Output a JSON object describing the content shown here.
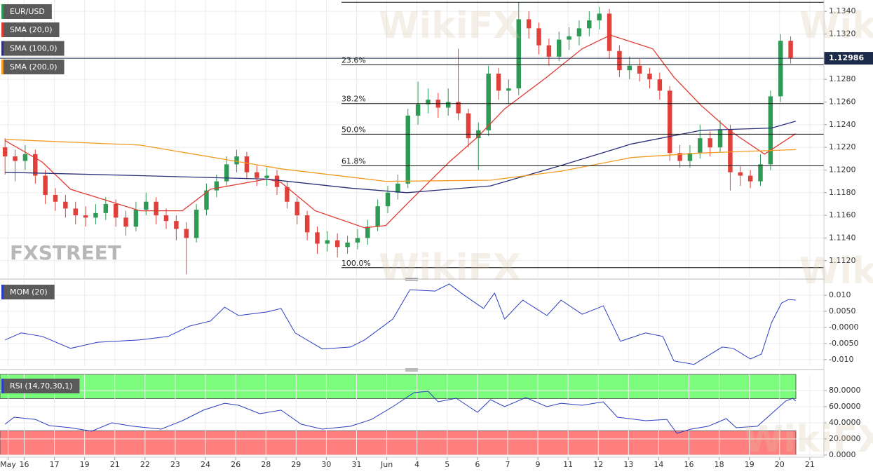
{
  "chart_data": [
    {
      "type": "candlestick",
      "name": "EUR/USD",
      "up_color": "#2e9a55",
      "down_color": "#e0403a",
      "xlim": [
        -0.5,
        81.3
      ],
      "open": [
        1.122,
        1.1212,
        1.1208,
        1.1214,
        1.1195,
        1.1178,
        1.1172,
        1.1166,
        1.116,
        1.1158,
        1.1162,
        1.117,
        1.1158,
        1.115,
        1.1165,
        1.1172,
        1.116,
        1.1155,
        1.1148,
        1.114,
        1.1165,
        1.1182,
        1.119,
        1.1205,
        1.1212,
        1.1198,
        1.1193,
        1.1195,
        1.1185,
        1.1172,
        1.116,
        1.1145,
        1.1135,
        1.1138,
        1.1132,
        1.1136,
        1.114,
        1.115,
        1.1168,
        1.118,
        1.1188,
        1.1248,
        1.1258,
        1.1262,
        1.1255,
        1.126,
        1.125,
        1.1228,
        1.1235,
        1.1285,
        1.127,
        1.1272,
        1.1333,
        1.1325,
        1.131,
        1.13,
        1.1315,
        1.1318,
        1.1325,
        1.1332,
        1.1338,
        1.1305,
        1.1288,
        1.1292,
        1.1285,
        1.128,
        1.127,
        1.1215,
        1.1208,
        1.1215,
        1.1228,
        1.122,
        1.1236,
        1.1198,
        1.1195,
        1.119,
        1.1205,
        1.1265,
        1.1314
      ],
      "high": [
        1.1228,
        1.1218,
        1.1222,
        1.1218,
        1.12,
        1.1184,
        1.1178,
        1.1172,
        1.1168,
        1.117,
        1.1176,
        1.1174,
        1.1164,
        1.1172,
        1.118,
        1.1176,
        1.1166,
        1.116,
        1.1154,
        1.117,
        1.1188,
        1.1196,
        1.1212,
        1.1218,
        1.1216,
        1.1204,
        1.1202,
        1.12,
        1.119,
        1.1176,
        1.1164,
        1.115,
        1.1146,
        1.1144,
        1.1142,
        1.1148,
        1.1156,
        1.1174,
        1.1186,
        1.1196,
        1.1254,
        1.1278,
        1.1272,
        1.1268,
        1.1272,
        1.1307,
        1.1254,
        1.1242,
        1.1292,
        1.129,
        1.128,
        1.1348,
        1.134,
        1.133,
        1.1316,
        1.1322,
        1.1326,
        1.1332,
        1.134,
        1.1344,
        1.1342,
        1.131,
        1.13,
        1.1298,
        1.129,
        1.1286,
        1.1274,
        1.1222,
        1.1222,
        1.124,
        1.1234,
        1.1244,
        1.124,
        1.1204,
        1.12,
        1.1214,
        1.127,
        1.132,
        1.1318
      ],
      "low": [
        1.1196,
        1.119,
        1.12,
        1.1188,
        1.117,
        1.1164,
        1.1158,
        1.1152,
        1.115,
        1.1152,
        1.1156,
        1.115,
        1.1142,
        1.1146,
        1.116,
        1.1152,
        1.1148,
        1.1138,
        1.1108,
        1.1136,
        1.116,
        1.1176,
        1.1186,
        1.1198,
        1.1192,
        1.1186,
        1.1186,
        1.1178,
        1.1166,
        1.1152,
        1.1138,
        1.1126,
        1.1128,
        1.1123,
        1.1126,
        1.113,
        1.1134,
        1.1146,
        1.1162,
        1.1174,
        1.1184,
        1.124,
        1.125,
        1.1246,
        1.1248,
        1.1244,
        1.122,
        1.12,
        1.123,
        1.1262,
        1.1258,
        1.1266,
        1.1316,
        1.1302,
        1.1292,
        1.1296,
        1.1306,
        1.131,
        1.1318,
        1.1324,
        1.1298,
        1.1282,
        1.128,
        1.1278,
        1.1272,
        1.1262,
        1.1208,
        1.1202,
        1.1202,
        1.121,
        1.1212,
        1.1216,
        1.1182,
        1.1186,
        1.1184,
        1.1186,
        1.12,
        1.126,
        1.1294
      ],
      "close": [
        1.1212,
        1.1208,
        1.1214,
        1.1195,
        1.1178,
        1.1172,
        1.1166,
        1.116,
        1.1158,
        1.1162,
        1.117,
        1.1158,
        1.115,
        1.1165,
        1.1172,
        1.116,
        1.1155,
        1.1148,
        1.114,
        1.1165,
        1.1182,
        1.119,
        1.1205,
        1.1212,
        1.1198,
        1.1193,
        1.1195,
        1.1185,
        1.1172,
        1.116,
        1.1145,
        1.1135,
        1.1138,
        1.1132,
        1.1136,
        1.114,
        1.115,
        1.1168,
        1.118,
        1.1188,
        1.1248,
        1.1258,
        1.1262,
        1.1255,
        1.126,
        1.125,
        1.1228,
        1.1235,
        1.1285,
        1.127,
        1.1272,
        1.1333,
        1.1325,
        1.131,
        1.13,
        1.1315,
        1.1318,
        1.1325,
        1.1332,
        1.1338,
        1.1305,
        1.1288,
        1.1292,
        1.1285,
        1.128,
        1.127,
        1.1215,
        1.1208,
        1.1215,
        1.1228,
        1.122,
        1.1236,
        1.1198,
        1.1195,
        1.119,
        1.1205,
        1.1265,
        1.1314,
        1.1299
      ],
      "overlays": [
        {
          "name": "SMA (20,0)",
          "color": "#e03a30",
          "x": [
            0,
            3.7,
            6.5,
            13.4,
            17.6,
            20.4,
            26,
            27.4,
            30.8,
            35.7,
            37.8,
            39.9,
            44.1,
            46.9,
            49.6,
            53.8,
            57.3,
            60.1,
            64.3,
            66.4,
            69.1,
            71.9,
            75.4,
            78.5
          ],
          "values": [
            1.1226,
            1.1207,
            1.1183,
            1.1164,
            1.1164,
            1.1183,
            1.1192,
            1.1189,
            1.1164,
            1.1149,
            1.1151,
            1.117,
            1.1207,
            1.1229,
            1.1254,
            1.1282,
            1.1307,
            1.1319,
            1.1307,
            1.1282,
            1.1257,
            1.1235,
            1.1214,
            1.1232
          ]
        },
        {
          "name": "SMA (100,0)",
          "color": "#2b2f78",
          "x": [
            0,
            13.4,
            26,
            34.3,
            39.9,
            48.2,
            55.2,
            62.2,
            69.1,
            76.1,
            78.5
          ],
          "values": [
            1.1198,
            1.1195,
            1.1192,
            1.1184,
            1.118,
            1.1186,
            1.1204,
            1.1223,
            1.1235,
            1.1237,
            1.1243
          ]
        },
        {
          "name": "SMA (200,0)",
          "color": "#f39a1e",
          "x": [
            0,
            13.4,
            27.4,
            37.8,
            48.2,
            55.2,
            62.2,
            69.1,
            78.5
          ],
          "values": [
            1.1227,
            1.1222,
            1.1201,
            1.119,
            1.1191,
            1.1199,
            1.1211,
            1.1215,
            1.1218
          ]
        }
      ],
      "ylim": [
        1.1105,
        1.135
      ],
      "yticks": [
        {
          "value": 1.112,
          "label": "1.1120"
        },
        {
          "value": 1.114,
          "label": "1.1140"
        },
        {
          "value": 1.116,
          "label": "1.1160"
        },
        {
          "value": 1.118,
          "label": "1.1180"
        },
        {
          "value": 1.12,
          "label": "1.1200"
        },
        {
          "value": 1.122,
          "label": "1.1220"
        },
        {
          "value": 1.124,
          "label": "1.1240"
        },
        {
          "value": 1.126,
          "label": "1.1260"
        },
        {
          "value": 1.128,
          "label": "1.1280"
        },
        {
          "value": 1.13,
          "label": "1.1300"
        },
        {
          "value": 1.132,
          "label": "1.1320"
        },
        {
          "value": 1.134,
          "label": "1.1340"
        }
      ],
      "last_price": 1.12986,
      "fib_x_start": 33.4,
      "fib_high": 1.1348,
      "fib_levels": [
        {
          "label": "23.6%",
          "value": 1.12928
        },
        {
          "label": "38.2%",
          "value": 1.12586
        },
        {
          "label": "50.0%",
          "value": 1.12316
        },
        {
          "label": "61.8%",
          "value": 1.12037
        },
        {
          "label": "100.0%",
          "value": 1.11138
        }
      ],
      "grid": true
    },
    {
      "type": "line",
      "xlim": [
        -0.5,
        81.3
      ],
      "series": [
        {
          "name": "MOM (20)",
          "color": "#2a3cc0",
          "x": [
            0,
            1.6,
            3.7,
            6.5,
            9.2,
            13.4,
            16.2,
            18.3,
            20.4,
            21.8,
            23.2,
            26,
            27.4,
            28.8,
            31.5,
            34.3,
            35.7,
            38.5,
            40.2,
            42.7,
            44.1,
            45.5,
            47.5,
            48.6,
            49.6,
            51.4,
            53.8,
            55.2,
            57.3,
            59.4,
            61.1,
            63.6,
            65.3,
            66.4,
            68.4,
            71.2,
            72.3,
            74,
            75.1,
            76.1,
            77.1,
            77.8,
            78.5
          ],
          "values": [
            -0.0039,
            -0.0017,
            -0.0028,
            -0.0065,
            -0.0046,
            -0.0039,
            -0.0028,
            0.0004,
            0.002,
            0.0063,
            0.0037,
            0.0048,
            0.0059,
            -0.0017,
            -0.0067,
            -0.0061,
            -0.0039,
            0.0026,
            0.0117,
            0.0113,
            0.0135,
            0.0102,
            0.0059,
            0.0107,
            0.0026,
            0.0085,
            0.0037,
            0.0085,
            0.0041,
            0.0067,
            -0.0043,
            -0.0017,
            -0.0028,
            -0.0104,
            -0.0115,
            -0.0061,
            -0.0065,
            -0.0098,
            -0.0083,
            0.0015,
            0.0076,
            0.0087,
            0.0085
          ]
        }
      ],
      "ylim": [
        -0.012,
        0.0146
      ],
      "yticks": [
        {
          "value": 0.01,
          "label": "0.010"
        },
        {
          "value": 0.005,
          "label": "0.0050"
        },
        {
          "value": 0,
          "label": "-0.0000"
        },
        {
          "value": -0.005,
          "label": "-0.0050"
        },
        {
          "value": -0.01,
          "label": "-0.010"
        }
      ],
      "grid": true
    },
    {
      "type": "line",
      "xlim": [
        -0.5,
        81.3
      ],
      "series": [
        {
          "name": "RSI (14,70,30,1)",
          "color": "#2a3cc0",
          "x": [
            0,
            0.9,
            3,
            4.4,
            6.5,
            8.6,
            10.6,
            12.7,
            15.5,
            17.6,
            19.7,
            21.8,
            23.2,
            25.3,
            27.4,
            29.4,
            31.5,
            34.3,
            36.4,
            38.5,
            40.6,
            42,
            43,
            44.8,
            46.9,
            48.2,
            49.6,
            51.7,
            53.8,
            55.2,
            57.3,
            59.4,
            60.8,
            63.6,
            65.7,
            66.7,
            68.1,
            69.8,
            71.6,
            72.6,
            74.7,
            76.1,
            77.5,
            78.2,
            78.5
          ],
          "values": [
            38.3,
            47,
            44.3,
            36.5,
            33.9,
            29.6,
            40,
            35.7,
            32.2,
            42.6,
            55.7,
            64.3,
            61.7,
            51.3,
            55.7,
            38.3,
            32.2,
            35.7,
            44.3,
            60,
            77.4,
            79.1,
            66.1,
            70.4,
            53,
            68.7,
            60,
            71.3,
            60,
            64.3,
            61.7,
            66.1,
            47,
            42.6,
            44.3,
            27,
            32.2,
            35.7,
            45.2,
            33.9,
            35.7,
            51.3,
            67,
            70.4,
            67
          ]
        }
      ],
      "bands": [
        {
          "from": 70,
          "to": 100,
          "color": "#7cfc7c"
        },
        {
          "from": 0,
          "to": 30,
          "color": "#ff7f7f"
        }
      ],
      "ylim": [
        0,
        100
      ],
      "yticks": [
        {
          "value": 80,
          "label": "80.0000"
        },
        {
          "value": 60,
          "label": "60.0000"
        },
        {
          "value": 40,
          "label": "40.0000"
        },
        {
          "value": 20,
          "label": "20.0000"
        },
        {
          "value": 0,
          "label": "0.0000"
        }
      ],
      "xticks": [
        {
          "value": 0.3,
          "label": "May"
        },
        {
          "value": 1.9,
          "label": "16"
        },
        {
          "value": 4.9,
          "label": "17"
        },
        {
          "value": 7.9,
          "label": "19"
        },
        {
          "value": 10.9,
          "label": "21"
        },
        {
          "value": 13.9,
          "label": "22"
        },
        {
          "value": 16.9,
          "label": "23"
        },
        {
          "value": 19.9,
          "label": "24"
        },
        {
          "value": 22.9,
          "label": "26"
        },
        {
          "value": 25.9,
          "label": "28"
        },
        {
          "value": 28.9,
          "label": "29"
        },
        {
          "value": 31.9,
          "label": "30"
        },
        {
          "value": 34.9,
          "label": "31"
        },
        {
          "value": 37.9,
          "label": "Jun"
        },
        {
          "value": 40.9,
          "label": "4"
        },
        {
          "value": 43.9,
          "label": "5"
        },
        {
          "value": 46.9,
          "label": "6"
        },
        {
          "value": 49.9,
          "label": "7"
        },
        {
          "value": 52.9,
          "label": "9"
        },
        {
          "value": 55.9,
          "label": "11"
        },
        {
          "value": 58.9,
          "label": "12"
        },
        {
          "value": 61.9,
          "label": "13"
        },
        {
          "value": 64.9,
          "label": "14"
        },
        {
          "value": 67.9,
          "label": "16"
        },
        {
          "value": 70.9,
          "label": "18"
        },
        {
          "value": 73.9,
          "label": "19"
        },
        {
          "value": 76.9,
          "label": "20"
        },
        {
          "value": 79.9,
          "label": "21"
        }
      ],
      "grid": true
    }
  ],
  "watermarks": {
    "fxstreet": "FXSTREET",
    "wikifx": "WikiFX"
  }
}
